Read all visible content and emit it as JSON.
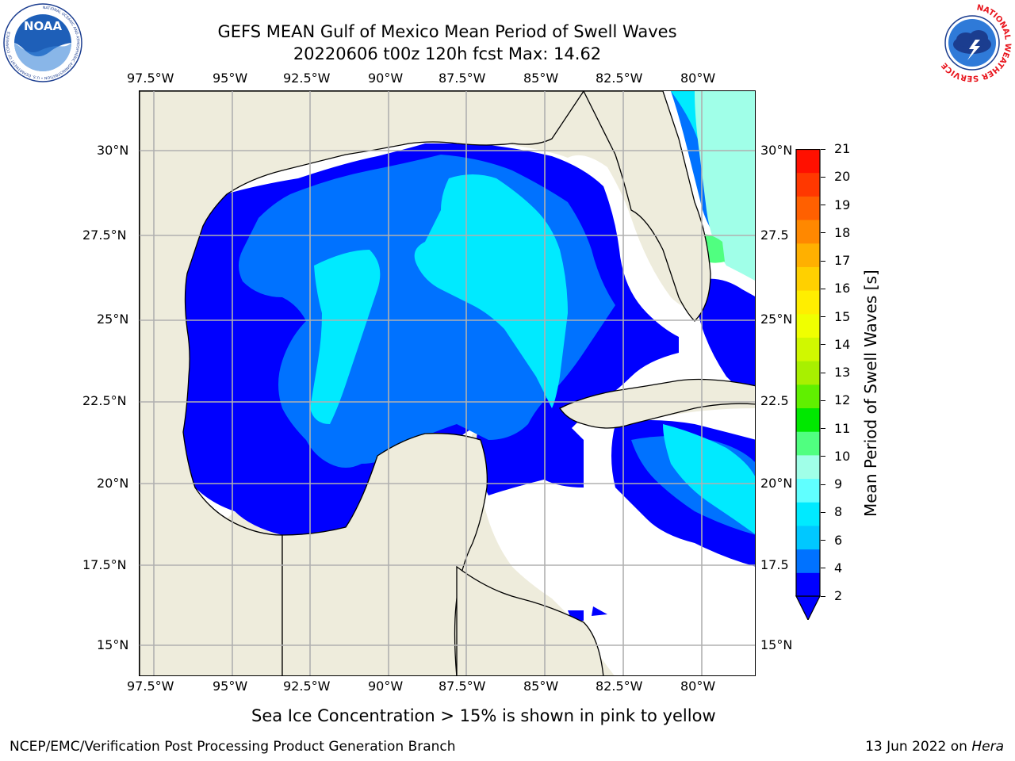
{
  "header": {
    "title_line1": "GEFS MEAN Gulf of Mexico Mean Period of Swell Waves",
    "title_line2": "20220606 t00z 120h fcst   Max: 14.62"
  },
  "logos": {
    "left_text": "NOAA",
    "left_ring_text": "NATIONAL OCEANIC AND ATMOSPHERIC ADMINISTRATION • U.S. DEPARTMENT OF COMMERCE",
    "right_ring_text": "NATIONAL WEATHER SERVICE"
  },
  "map": {
    "lon_labels": [
      "97.5°W",
      "95°W",
      "92.5°W",
      "90°W",
      "87.5°W",
      "85°W",
      "82.5°W",
      "80°W"
    ],
    "lat_labels_left": [
      "30°N",
      "27.5°N",
      "25°N",
      "22.5°N",
      "20°N",
      "17.5°N",
      "15°N"
    ],
    "lat_labels_right": [
      "30°N",
      "27.5",
      "25°N",
      "22.5",
      "20°N",
      "17.5",
      "15°N"
    ],
    "colors": {
      "land": "#eeecdc",
      "no_data": "#ffffff",
      "grid": "#b0b0b0"
    }
  },
  "colorbar": {
    "label": "Mean Period of Swell Waves [s]",
    "ticks": [
      "21",
      "20",
      "19",
      "18",
      "17",
      "16",
      "15",
      "14",
      "13",
      "12",
      "11",
      "10",
      "9",
      "8",
      "6",
      "4",
      "2"
    ],
    "colors": [
      "#0000ff",
      "#0072ff",
      "#00c8ff",
      "#00eaff",
      "#60ffff",
      "#a0ffe8",
      "#50ff80",
      "#00e800",
      "#60f000",
      "#a8f000",
      "#d0f800",
      "#f0ff00",
      "#ffee00",
      "#ffd000",
      "#ffb000",
      "#ff8800",
      "#ff6000",
      "#ff3800",
      "#ff1000"
    ]
  },
  "footer": {
    "sea_ice_note": "Sea Ice Concentration > 15% is shown in pink to yellow",
    "branch": "NCEP/EMC/Verification Post Processing Product Generation Branch",
    "date_prefix": "13 Jun 2022 on ",
    "host": "Hera"
  }
}
